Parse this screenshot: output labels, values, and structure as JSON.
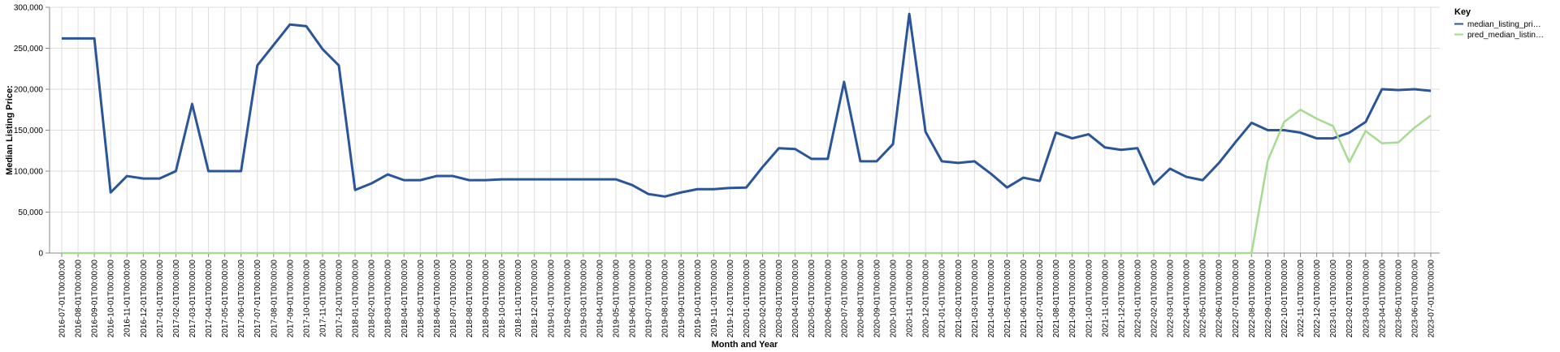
{
  "chart_data": {
    "type": "line",
    "xlabel": "Month and Year",
    "ylabel": "Median Listing Price:",
    "ylim": [
      0,
      300000
    ],
    "yticks": [
      "0",
      "50,000",
      "100,000",
      "150,000",
      "200,000",
      "250,000",
      "300,000"
    ],
    "grid": true,
    "legend": {
      "title": "Key",
      "placement": "right"
    },
    "x": [
      "2016-07-01T00:00:00",
      "2016-08-01T00:00:00",
      "2016-09-01T00:00:00",
      "2016-10-01T00:00:00",
      "2016-11-01T00:00:00",
      "2016-12-01T00:00:00",
      "2017-01-01T00:00:00",
      "2017-02-01T00:00:00",
      "2017-03-01T00:00:00",
      "2017-04-01T00:00:00",
      "2017-05-01T00:00:00",
      "2017-06-01T00:00:00",
      "2017-07-01T00:00:00",
      "2017-08-01T00:00:00",
      "2017-09-01T00:00:00",
      "2017-10-01T00:00:00",
      "2017-11-01T00:00:00",
      "2017-12-01T00:00:00",
      "2018-01-01T00:00:00",
      "2018-02-01T00:00:00",
      "2018-03-01T00:00:00",
      "2018-04-01T00:00:00",
      "2018-05-01T00:00:00",
      "2018-06-01T00:00:00",
      "2018-07-01T00:00:00",
      "2018-08-01T00:00:00",
      "2018-09-01T00:00:00",
      "2018-10-01T00:00:00",
      "2018-11-01T00:00:00",
      "2018-12-01T00:00:00",
      "2019-01-01T00:00:00",
      "2019-02-01T00:00:00",
      "2019-03-01T00:00:00",
      "2019-04-01T00:00:00",
      "2019-05-01T00:00:00",
      "2019-06-01T00:00:00",
      "2019-07-01T00:00:00",
      "2019-08-01T00:00:00",
      "2019-09-01T00:00:00",
      "2019-10-01T00:00:00",
      "2019-11-01T00:00:00",
      "2019-12-01T00:00:00",
      "2020-01-01T00:00:00",
      "2020-02-01T00:00:00",
      "2020-03-01T00:00:00",
      "2020-04-01T00:00:00",
      "2020-05-01T00:00:00",
      "2020-06-01T00:00:00",
      "2020-07-01T00:00:00",
      "2020-08-01T00:00:00",
      "2020-09-01T00:00:00",
      "2020-10-01T00:00:00",
      "2020-11-01T00:00:00",
      "2020-12-01T00:00:00",
      "2021-01-01T00:00:00",
      "2021-02-01T00:00:00",
      "2021-03-01T00:00:00",
      "2021-04-01T00:00:00",
      "2021-05-01T00:00:00",
      "2021-06-01T00:00:00",
      "2021-07-01T00:00:00",
      "2021-08-01T00:00:00",
      "2021-09-01T00:00:00",
      "2021-10-01T00:00:00",
      "2021-11-01T00:00:00",
      "2021-12-01T00:00:00",
      "2022-01-01T00:00:00",
      "2022-02-01T00:00:00",
      "2022-03-01T00:00:00",
      "2022-04-01T00:00:00",
      "2022-05-01T00:00:00",
      "2022-06-01T00:00:00",
      "2022-07-01T00:00:00",
      "2022-08-01T00:00:00",
      "2022-09-01T00:00:00",
      "2022-10-01T00:00:00",
      "2022-11-01T00:00:00",
      "2022-12-01T00:00:00",
      "2023-01-01T00:00:00",
      "2023-02-01T00:00:00",
      "2023-03-01T00:00:00",
      "2023-04-01T00:00:00",
      "2023-05-01T00:00:00",
      "2023-06-01T00:00:00",
      "2023-07-01T00:00:00"
    ],
    "series": [
      {
        "name": "median_listing_pri…",
        "color": "#2a5599",
        "values": [
          262000,
          262000,
          262000,
          74000,
          94000,
          91000,
          91000,
          100000,
          182000,
          100000,
          100000,
          100000,
          229000,
          254000,
          279000,
          277000,
          249000,
          229000,
          77000,
          85000,
          96000,
          89000,
          89000,
          94000,
          94000,
          89000,
          89000,
          90000,
          90000,
          90000,
          90000,
          90000,
          90000,
          90000,
          90000,
          83000,
          72000,
          69000,
          74000,
          78000,
          78000,
          79500,
          80000,
          105000,
          128000,
          127000,
          115000,
          115000,
          209000,
          112000,
          112000,
          133000,
          292000,
          148000,
          112000,
          110000,
          112000,
          97000,
          80000,
          92000,
          88000,
          147000,
          140000,
          145000,
          129000,
          126000,
          128000,
          84000,
          103000,
          93000,
          89000,
          110000,
          135000,
          159000,
          150000,
          150000,
          147000,
          140000,
          140000,
          147000,
          160000,
          200000,
          199000,
          200000,
          198000
        ]
      },
      {
        "name": "pred_median_listin…",
        "color": "#a6db92",
        "values": [
          0,
          0,
          0,
          0,
          0,
          0,
          0,
          0,
          0,
          0,
          0,
          0,
          0,
          0,
          0,
          0,
          0,
          0,
          0,
          0,
          0,
          0,
          0,
          0,
          0,
          0,
          0,
          0,
          0,
          0,
          0,
          0,
          0,
          0,
          0,
          0,
          0,
          0,
          0,
          0,
          0,
          0,
          0,
          0,
          0,
          0,
          0,
          0,
          0,
          0,
          0,
          0,
          0,
          0,
          0,
          0,
          0,
          0,
          0,
          0,
          0,
          0,
          0,
          0,
          0,
          0,
          0,
          0,
          0,
          0,
          0,
          0,
          0,
          0,
          113000,
          160000,
          175000,
          164000,
          155000,
          111000,
          149000,
          134000,
          135000,
          153000,
          168000
        ]
      }
    ]
  }
}
